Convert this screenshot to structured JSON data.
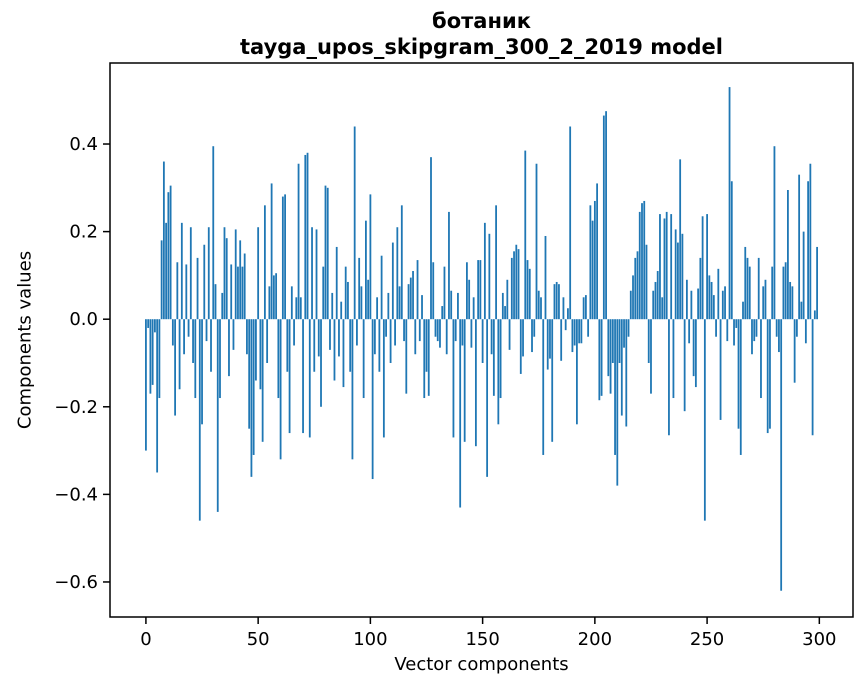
{
  "figure": {
    "title_line1": "ботаник",
    "title_line2": "tayga_upos_skipgram_300_2_2019 model",
    "xlabel": "Vector components",
    "ylabel": "Components values"
  },
  "chart_data": {
    "type": "bar",
    "title": "ботаник",
    "subtitle": "tayga_upos_skipgram_300_2_2019 model",
    "xlabel": "Vector components",
    "ylabel": "Components values",
    "n_bars": 300,
    "x_start": 0,
    "xlim": [
      -16,
      315
    ],
    "ylim": [
      -0.68,
      0.585
    ],
    "xticks": {
      "values": [
        0,
        50,
        100,
        150,
        200,
        250,
        300
      ],
      "labels": [
        "0",
        "50",
        "100",
        "150",
        "200",
        "250",
        "300"
      ]
    },
    "yticks": {
      "values": [
        0.4,
        0.2,
        0.0,
        -0.2,
        -0.4,
        -0.6
      ],
      "labels": [
        "0.4",
        "0.2",
        "0.0",
        "−0.2",
        "−0.4",
        "−0.6"
      ]
    },
    "bar_color": "#1f77b4",
    "axis_color": "#000000",
    "grid": false,
    "legend": null,
    "values": [
      -0.3,
      -0.02,
      -0.17,
      -0.15,
      -0.03,
      -0.35,
      -0.18,
      0.18,
      0.36,
      0.22,
      0.29,
      0.305,
      -0.06,
      -0.22,
      0.13,
      -0.16,
      0.22,
      -0.08,
      0.125,
      -0.04,
      0.21,
      -0.1,
      -0.18,
      0.14,
      -0.46,
      -0.24,
      0.17,
      -0.05,
      0.21,
      -0.12,
      0.395,
      0.08,
      -0.44,
      -0.18,
      0.06,
      0.21,
      0.185,
      -0.13,
      0.125,
      -0.07,
      0.205,
      0.12,
      0.18,
      0.12,
      0.15,
      -0.08,
      -0.25,
      -0.36,
      -0.31,
      -0.14,
      0.21,
      -0.16,
      -0.28,
      0.26,
      -0.1,
      0.075,
      0.31,
      0.1,
      0.105,
      -0.18,
      -0.32,
      0.28,
      0.285,
      -0.12,
      -0.26,
      0.075,
      -0.06,
      0.05,
      0.355,
      0.05,
      -0.26,
      0.375,
      0.38,
      -0.27,
      0.21,
      -0.12,
      0.205,
      -0.085,
      -0.2,
      0.12,
      0.305,
      0.3,
      -0.07,
      0.06,
      -0.14,
      0.165,
      -0.085,
      0.04,
      -0.155,
      0.12,
      0.085,
      -0.12,
      -0.32,
      0.44,
      -0.06,
      0.14,
      0.075,
      -0.18,
      0.225,
      0.09,
      0.285,
      -0.365,
      -0.08,
      0.05,
      -0.12,
      0.145,
      -0.27,
      -0.04,
      0.06,
      -0.1,
      0.175,
      -0.06,
      0.21,
      0.075,
      0.26,
      -0.05,
      -0.17,
      0.08,
      0.095,
      0.11,
      -0.08,
      0.135,
      -0.05,
      0.055,
      -0.18,
      -0.12,
      -0.175,
      0.37,
      0.13,
      -0.04,
      -0.05,
      -0.065,
      0.03,
      0.12,
      -0.08,
      0.245,
      0.065,
      -0.27,
      -0.05,
      0.06,
      -0.43,
      -0.06,
      -0.28,
      0.13,
      0.09,
      -0.065,
      0.05,
      -0.29,
      0.135,
      0.135,
      -0.1,
      0.22,
      -0.36,
      0.195,
      -0.08,
      -0.175,
      0.26,
      -0.24,
      -0.18,
      0.06,
      0.03,
      0.09,
      -0.07,
      0.14,
      0.155,
      0.17,
      0.16,
      -0.125,
      -0.085,
      0.385,
      0.135,
      0.115,
      -0.075,
      -0.04,
      0.355,
      0.065,
      0.05,
      -0.31,
      0.19,
      -0.115,
      -0.09,
      -0.28,
      0.08,
      0.085,
      0.08,
      -0.095,
      0.05,
      -0.025,
      0.025,
      0.44,
      -0.075,
      -0.06,
      -0.24,
      -0.055,
      -0.055,
      0.05,
      0.055,
      -0.04,
      0.26,
      0.225,
      0.27,
      0.31,
      -0.185,
      -0.175,
      0.465,
      0.475,
      -0.13,
      -0.17,
      -0.1,
      -0.31,
      -0.38,
      -0.1,
      -0.22,
      -0.065,
      -0.245,
      -0.04,
      0.065,
      0.1,
      0.14,
      0.155,
      0.245,
      0.265,
      0.27,
      0.17,
      -0.1,
      -0.17,
      0.065,
      0.085,
      0.11,
      0.24,
      0.05,
      0.23,
      0.245,
      -0.265,
      0.24,
      -0.18,
      0.205,
      0.175,
      0.365,
      0.195,
      -0.21,
      0.09,
      -0.055,
      0.065,
      -0.13,
      -0.155,
      0.07,
      0.14,
      0.235,
      -0.46,
      0.24,
      0.1,
      0.085,
      0.055,
      -0.04,
      0.115,
      -0.23,
      0.065,
      0.075,
      -0.05,
      0.53,
      0.315,
      -0.06,
      -0.02,
      -0.25,
      -0.31,
      0.04,
      0.165,
      0.14,
      0.12,
      -0.08,
      -0.05,
      -0.04,
      0.14,
      -0.18,
      0.075,
      0.09,
      -0.26,
      -0.25,
      0.12,
      0.395,
      -0.04,
      -0.075,
      -0.62,
      0.12,
      0.13,
      0.295,
      0.085,
      0.075,
      -0.145,
      -0.04,
      0.33,
      0.04,
      0.2,
      -0.055,
      0.315,
      0.355,
      -0.265,
      0.02,
      0.165
    ]
  }
}
